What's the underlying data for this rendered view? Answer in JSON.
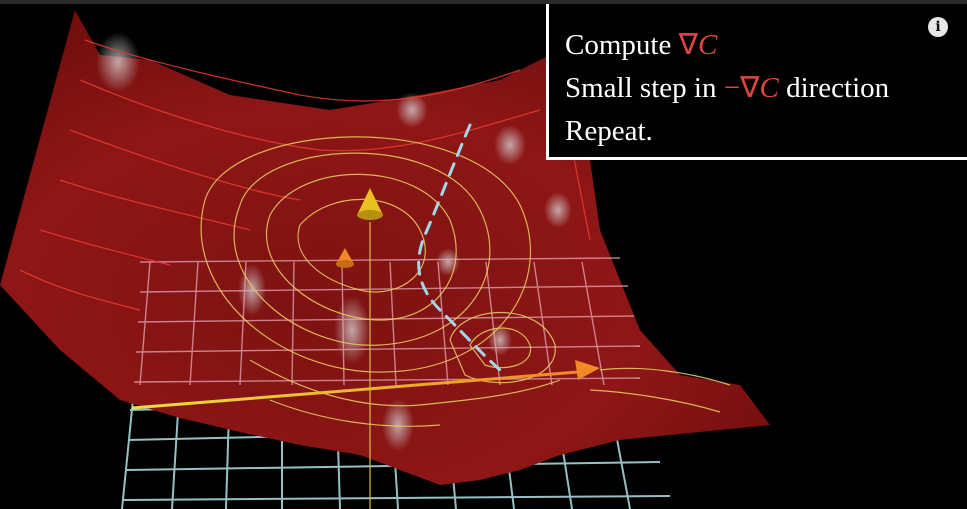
{
  "caption": {
    "line1": {
      "text": "Compute ",
      "math": "C"
    },
    "line2": {
      "prefix": "Small step in ",
      "minus": "−",
      "math": "C",
      "suffix": " direction"
    },
    "line3": "Repeat.",
    "nabla": "∇",
    "math_color": "#e0463f"
  },
  "info_button": {
    "icon": "info-icon",
    "glyph": "i"
  },
  "colors": {
    "surface": "#8c1414",
    "grid": "#a8d4dc",
    "contour_yellow": "#e8d060",
    "contour_red": "#e83a2e",
    "path_dash": "#a0d8ea",
    "arrow_orange": "#f08a24",
    "arrow_yellow": "#e8c020"
  }
}
